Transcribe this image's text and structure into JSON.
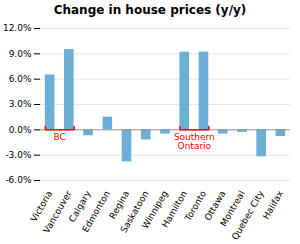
{
  "chart_data": {
    "type": "bar",
    "title": "Change in house prices (y/y)",
    "categories": [
      "Victoria",
      "Vancouver",
      "Calgary",
      "Edmonton",
      "Regina",
      "Saskatoon",
      "Winnipeg",
      "Hamilton",
      "Toronto",
      "Ottawa",
      "Montreal",
      "Quebec City",
      "Halifax"
    ],
    "values": [
      6.5,
      9.5,
      -0.7,
      1.5,
      -3.8,
      -1.2,
      -0.5,
      9.2,
      9.2,
      -0.5,
      -0.3,
      -3.2,
      -0.8
    ],
    "color": "#6baed6",
    "ylim": [
      -6.0,
      12.0
    ],
    "yticks": [
      {
        "value": -6.0,
        "label": "-6.0%"
      },
      {
        "value": -3.0,
        "label": "-3.0%"
      },
      {
        "value": 0.0,
        "label": "0.0%"
      },
      {
        "value": 3.0,
        "label": "3.0%"
      },
      {
        "value": 6.0,
        "label": "6.0%"
      },
      {
        "value": 9.0,
        "label": "9.0%"
      },
      {
        "value": 12.0,
        "label": "12.0%"
      }
    ],
    "grid": true,
    "annotations": [
      {
        "text": "BC",
        "categories": [
          "Victoria",
          "Vancouver"
        ],
        "color": "red"
      },
      {
        "text": "Southern\nOntario",
        "categories": [
          "Hamilton",
          "Toronto"
        ],
        "color": "red"
      }
    ]
  }
}
